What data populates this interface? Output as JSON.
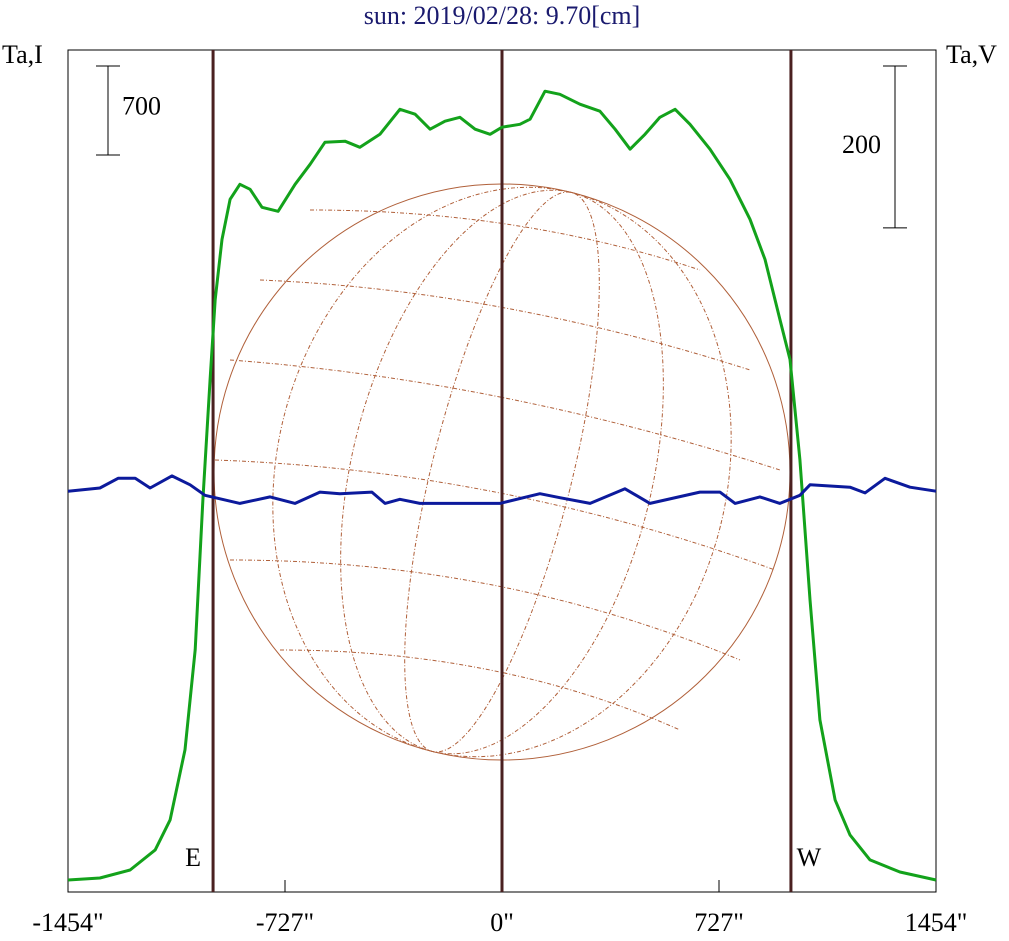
{
  "chart_data": {
    "type": "line",
    "title": "sun: 2019/02/28: 9.70[cm]",
    "ylabel": "Ta,I",
    "y2label": "Ta,V",
    "xlim": [
      -1454,
      1454
    ],
    "xticks": [
      {
        "value": -1454,
        "label": "-1454\""
      },
      {
        "value": -727,
        "label": "-727\""
      },
      {
        "value": 0,
        "label": "0\""
      },
      {
        "value": 727,
        "label": "727\""
      },
      {
        "value": 1454,
        "label": "1454\""
      }
    ],
    "ylim": [
      0,
      6620
    ],
    "y2lim": [
      -520,
      520
    ],
    "scale_bar": {
      "value": 700,
      "label": "700"
    },
    "scale_bar2": {
      "value": 200,
      "label": "200"
    },
    "limbs": [
      {
        "label": "E",
        "value": -968
      },
      {
        "label": "W",
        "value": 968
      }
    ],
    "limb_center": 0,
    "series": [
      {
        "name": "I",
        "color": "#13a21b",
        "x": [
          -1454,
          -1347,
          -1246,
          -1162,
          -1112,
          -1062,
          -1028,
          -1002,
          -978,
          -961,
          -938,
          -911,
          -878,
          -844,
          -804,
          -750,
          -693,
          -643,
          -593,
          -526,
          -476,
          -409,
          -342,
          -291,
          -241,
          -191,
          -141,
          -90,
          -40,
          0,
          60,
          94,
          144,
          194,
          261,
          328,
          379,
          429,
          479,
          529,
          580,
          630,
          697,
          764,
          831,
          881,
          931,
          965,
          998,
          1032,
          1065,
          1116,
          1166,
          1233,
          1333,
          1454
        ],
        "values": [
          94,
          110,
          173,
          331,
          567,
          1118,
          1905,
          3085,
          4030,
          4659,
          5131,
          5446,
          5564,
          5525,
          5383,
          5352,
          5564,
          5721,
          5895,
          5903,
          5855,
          5957,
          6154,
          6115,
          5997,
          6060,
          6091,
          5997,
          5957,
          6013,
          6036,
          6076,
          6296,
          6272,
          6194,
          6139,
          5997,
          5840,
          5957,
          6091,
          6154,
          6036,
          5840,
          5603,
          5289,
          4974,
          4502,
          4187,
          3400,
          2298,
          1354,
          724,
          449,
          252,
          157,
          94
        ]
      },
      {
        "name": "V",
        "color": "#0c1a9c",
        "axis": "y2",
        "x": [
          -1454,
          -1347,
          -1286,
          -1229,
          -1179,
          -1106,
          -1045,
          -995,
          -878,
          -777,
          -693,
          -610,
          -543,
          -436,
          -392,
          -342,
          -275,
          -7,
          127,
          194,
          295,
          412,
          496,
          663,
          730,
          781,
          864,
          931,
          998,
          1032,
          1166,
          1216,
          1283,
          1367,
          1454
        ],
        "values": [
          -25,
          -21,
          -9,
          -9,
          -21,
          -6,
          -17,
          -30,
          -40,
          -32,
          -40,
          -26,
          -28,
          -26,
          -40,
          -35,
          -40,
          -40,
          -28,
          -33,
          -40,
          -22,
          -40,
          -26,
          -26,
          -40,
          -32,
          -40,
          -30,
          -17,
          -20,
          -27,
          -9,
          -20,
          -25
        ]
      }
    ]
  }
}
